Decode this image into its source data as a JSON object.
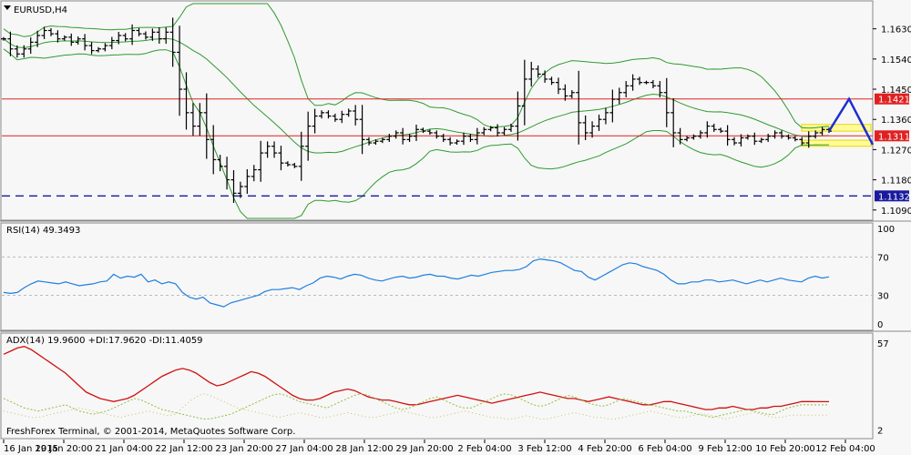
{
  "window": {
    "symbol_title": "EURUSD,H4",
    "copyright": "FreshForex Terminal, © 2001-2014, MetaQuotes Software Corp."
  },
  "colors": {
    "background": "#f7f7f7",
    "candle": "#000000",
    "bollinger": "#2f9a2f",
    "level_line": "#e02020",
    "support_line": "#1a1aa0",
    "zone_fill": "#fffb9a",
    "zone_border": "#e8d800",
    "forecast": "#1d2fd0",
    "rsi_line": "#1e7fe0",
    "adx_line": "#d01010",
    "di_plus": "#8fbf3a",
    "di_minus": "#c8c060"
  },
  "chart_data": [
    {
      "type": "candlestick",
      "title": "EURUSD,H4",
      "ylim": [
        1.1065,
        1.1705
      ],
      "y_ticks": [
        1.163,
        1.154,
        1.145,
        1.136,
        1.127,
        1.118,
        1.109
      ],
      "x_labels": [
        "16 Jan 2015",
        "19 Jan 20:00",
        "21 Jan 04:00",
        "22 Jan 12:00",
        "23 Jan 20:00",
        "27 Jan 04:00",
        "28 Jan 12:00",
        "29 Jan 20:00",
        "2 Feb 04:00",
        "3 Feb 12:00",
        "4 Feb 20:00",
        "6 Feb 04:00",
        "9 Feb 12:00",
        "10 Feb 20:00",
        "12 Feb 04:00"
      ],
      "closes": [
        1.16,
        1.157,
        1.1555,
        1.157,
        1.159,
        1.161,
        1.1625,
        1.1615,
        1.16,
        1.1605,
        1.159,
        1.16,
        1.158,
        1.1565,
        1.157,
        1.158,
        1.1595,
        1.161,
        1.16,
        1.1625,
        1.1615,
        1.1605,
        1.162,
        1.16,
        1.162,
        1.156,
        1.145,
        1.138,
        1.134,
        1.138,
        1.13,
        1.124,
        1.122,
        1.118,
        1.114,
        1.116,
        1.119,
        1.121,
        1.126,
        1.128,
        1.126,
        1.123,
        1.1225,
        1.122,
        1.128,
        1.134,
        1.137,
        1.138,
        1.137,
        1.136,
        1.1375,
        1.1385,
        1.136,
        1.13,
        1.129,
        1.1295,
        1.13,
        1.131,
        1.132,
        1.13,
        1.131,
        1.133,
        1.1325,
        1.132,
        1.131,
        1.13,
        1.129,
        1.1295,
        1.131,
        1.13,
        1.132,
        1.133,
        1.1335,
        1.132,
        1.133,
        1.134,
        1.14,
        1.148,
        1.151,
        1.1495,
        1.148,
        1.147,
        1.145,
        1.143,
        1.144,
        1.135,
        1.132,
        1.134,
        1.136,
        1.138,
        1.142,
        1.144,
        1.146,
        1.148,
        1.147,
        1.147,
        1.146,
        1.144,
        1.138,
        1.132,
        1.13,
        1.1305,
        1.131,
        1.132,
        1.134,
        1.133,
        1.1325,
        1.13,
        1.129,
        1.1305,
        1.131,
        1.1295,
        1.13,
        1.131,
        1.132,
        1.131,
        1.1305,
        1.13,
        1.129,
        1.131,
        1.132,
        1.133,
        1.1325
      ],
      "bollinger": {
        "period": 20
      },
      "levels": [
        {
          "label": "1.1421",
          "value": 1.1421,
          "style": "solid"
        },
        {
          "label": "1.1311",
          "value": 1.1311,
          "style": "solid"
        },
        {
          "label": "1.1132",
          "value": 1.1132,
          "style": "dashed"
        }
      ],
      "zones": [
        {
          "from": 1.1325,
          "to": 1.1345,
          "from_label": "12 Feb 04:00"
        },
        {
          "from": 1.128,
          "to": 1.1298,
          "from_label": "12 Feb 04:00"
        }
      ],
      "forecast_path": [
        1.1325,
        1.1421,
        1.1285
      ]
    },
    {
      "type": "line",
      "title": "RSI(14) 49.3493",
      "ylim": [
        0,
        100
      ],
      "y_ticks": [
        100,
        70,
        30,
        0
      ],
      "levels": [
        70,
        30
      ],
      "series": [
        {
          "name": "RSI(14)",
          "values": [
            33,
            32,
            33,
            38,
            42,
            45,
            44,
            43,
            42,
            44,
            42,
            40,
            41,
            42,
            44,
            45,
            52,
            48,
            50,
            49,
            52,
            44,
            46,
            42,
            44,
            42,
            33,
            28,
            26,
            28,
            22,
            20,
            18,
            22,
            24,
            26,
            28,
            30,
            34,
            36,
            36,
            37,
            38,
            36,
            40,
            43,
            48,
            50,
            49,
            47,
            50,
            52,
            51,
            48,
            46,
            45,
            47,
            49,
            50,
            48,
            49,
            51,
            52,
            50,
            50,
            48,
            47,
            49,
            51,
            50,
            52,
            54,
            55,
            56,
            56,
            57,
            60,
            66,
            68,
            67,
            66,
            64,
            60,
            56,
            55,
            49,
            46,
            50,
            54,
            58,
            62,
            64,
            63,
            60,
            58,
            56,
            52,
            46,
            42,
            42,
            44,
            44,
            46,
            46,
            44,
            45,
            46,
            44,
            42,
            44,
            46,
            44,
            46,
            48,
            46,
            45,
            44,
            48,
            50,
            48,
            49.3
          ]
        }
      ]
    },
    {
      "type": "line",
      "title": "ADX(14) 19.9600 +DI:17.9620 -DI:11.4059",
      "ylim": [
        0,
        60
      ],
      "y_ticks": [
        57,
        2
      ],
      "series": [
        {
          "name": "ADX(14)",
          "values": [
            50,
            52,
            54,
            55,
            53,
            50,
            47,
            44,
            41,
            38,
            34,
            30,
            26,
            24,
            22,
            21,
            20,
            21,
            22,
            24,
            27,
            30,
            33,
            36,
            38,
            40,
            41,
            40,
            38,
            35,
            32,
            30,
            31,
            33,
            35,
            37,
            39,
            38,
            36,
            33,
            30,
            27,
            24,
            22,
            21,
            21,
            22,
            24,
            26,
            27,
            28,
            27,
            25,
            23,
            22,
            21,
            21,
            20,
            19,
            18,
            18,
            19,
            20,
            21,
            22,
            23,
            24,
            23,
            22,
            21,
            20,
            19,
            20,
            21,
            22,
            23,
            24,
            25,
            26,
            25,
            24,
            23,
            22,
            22,
            21,
            20,
            21,
            22,
            23,
            22,
            21,
            20,
            19,
            18,
            18,
            19,
            20,
            20,
            19,
            18,
            17,
            16,
            15,
            15,
            16,
            16,
            17,
            16,
            15,
            15,
            16,
            16,
            17,
            17,
            18,
            19,
            20,
            20,
            19.96,
            19.96,
            19.96
          ]
        },
        {
          "name": "+DI",
          "values": [
            22,
            20,
            18,
            16,
            15,
            14,
            15,
            16,
            17,
            18,
            16,
            14,
            13,
            12,
            13,
            14,
            16,
            18,
            20,
            22,
            21,
            19,
            17,
            15,
            14,
            13,
            12,
            11,
            10,
            9,
            9,
            10,
            11,
            12,
            14,
            16,
            18,
            20,
            22,
            24,
            25,
            24,
            22,
            20,
            19,
            18,
            17,
            16,
            18,
            20,
            22,
            24,
            25,
            24,
            22,
            20,
            18,
            16,
            15,
            16,
            18,
            20,
            22,
            23,
            21,
            19,
            17,
            16,
            16,
            18,
            20,
            22,
            24,
            25,
            24,
            22,
            20,
            18,
            17,
            18,
            20,
            22,
            24,
            23,
            21,
            19,
            18,
            17,
            18,
            20,
            22,
            21,
            20,
            19,
            18,
            17,
            16,
            15,
            14,
            14,
            13,
            12,
            11,
            10,
            11,
            12,
            13,
            14,
            15,
            14,
            13,
            12,
            12,
            14,
            16,
            17,
            18,
            18,
            17.96,
            17.96,
            17.96
          ]
        },
        {
          "name": "-DI",
          "values": [
            14,
            13,
            12,
            11,
            10,
            10,
            11,
            12,
            13,
            14,
            15,
            16,
            15,
            14,
            13,
            12,
            11,
            10,
            11,
            12,
            13,
            14,
            13,
            12,
            11,
            12,
            16,
            20,
            23,
            25,
            24,
            22,
            20,
            18,
            16,
            15,
            14,
            13,
            12,
            11,
            10,
            11,
            12,
            13,
            12,
            11,
            10,
            10,
            11,
            12,
            13,
            12,
            11,
            10,
            10,
            11,
            12,
            13,
            14,
            13,
            12,
            11,
            10,
            10,
            11,
            12,
            13,
            14,
            13,
            12,
            11,
            10,
            10,
            9,
            9,
            10,
            11,
            10,
            9,
            9,
            10,
            11,
            12,
            13,
            12,
            11,
            10,
            10,
            9,
            9,
            10,
            11,
            12,
            13,
            14,
            13,
            12,
            11,
            10,
            10,
            11,
            12,
            12,
            11,
            10,
            9,
            10,
            11,
            12,
            13,
            12,
            11,
            10,
            10,
            11,
            11.4,
            11.4,
            11.4,
            11.4,
            11.4,
            11.4
          ]
        }
      ]
    }
  ]
}
